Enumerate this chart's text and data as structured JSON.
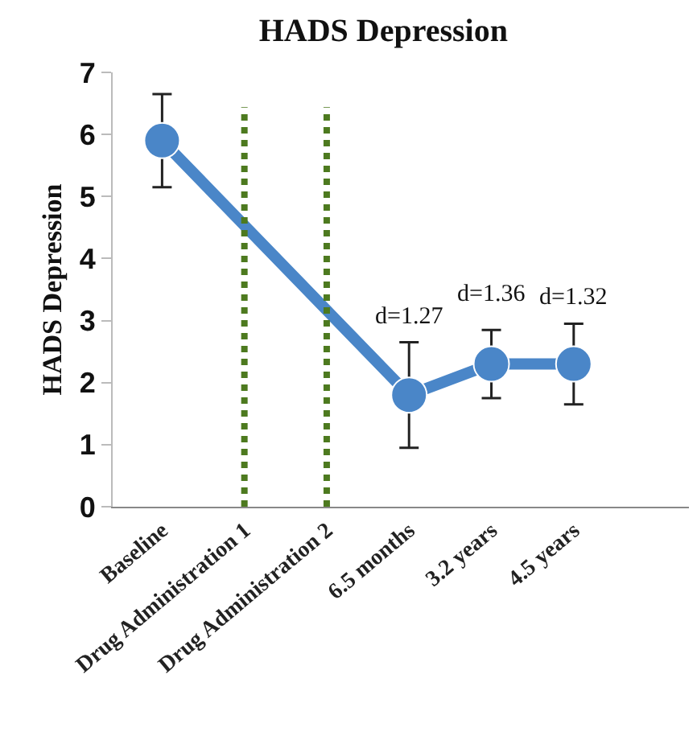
{
  "chart_data": {
    "type": "line",
    "title": "HADS Depression",
    "ylabel": "HADS Depression",
    "categories": [
      "Baseline",
      "Drug Administration 1",
      "Drug Administration 2",
      "6.5 months",
      "3.2 years",
      "4.5 years"
    ],
    "series": [
      {
        "color": "#4a86c8",
        "values": [
          5.9,
          null,
          null,
          1.8,
          2.3,
          2.3
        ],
        "errors": [
          [
            5.15,
            6.65
          ],
          null,
          null,
          [
            0.95,
            2.65
          ],
          [
            1.75,
            2.85
          ],
          [
            1.65,
            2.95
          ]
        ]
      }
    ],
    "ylim": [
      0,
      7
    ],
    "yticks": [
      0,
      1,
      2,
      3,
      4,
      5,
      6,
      7
    ],
    "grid": false,
    "marker": "circle",
    "line_style": "solid",
    "ref_lines": [
      {
        "axis": "x",
        "value": "Drug Administration 1",
        "color": "#4d7a1f",
        "line_style": "dotted"
      },
      {
        "axis": "x",
        "value": "Drug Administration 2",
        "color": "#4d7a1f",
        "line_style": "dotted"
      }
    ],
    "annotations": [
      "d=1.27",
      "d=1.36",
      "d=1.32"
    ]
  }
}
